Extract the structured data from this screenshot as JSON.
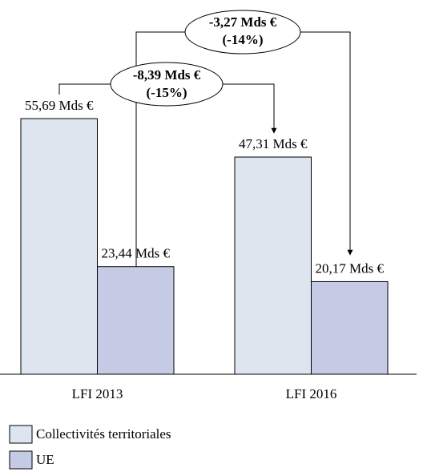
{
  "chart_data": {
    "type": "bar",
    "categories": [
      "LFI 2013",
      "LFI 2016"
    ],
    "series": [
      {
        "name": "Collectivités territoriales",
        "color": "#dde6ef",
        "values": [
          55.69,
          47.31
        ],
        "value_labels": [
          "55,69 Mds €",
          "47,31 Mds €"
        ]
      },
      {
        "name": "UE",
        "color": "#c5cbe5",
        "values": [
          23.44,
          20.17
        ],
        "value_labels": [
          "23,44 Mds €",
          "20,17 Mds €"
        ]
      }
    ],
    "annotations": [
      {
        "lines": [
          "-3,27 Mds €",
          "(-14%)"
        ]
      },
      {
        "lines": [
          "-8,39 Mds €",
          "(-15%)"
        ]
      }
    ],
    "legend": "bottom-left"
  }
}
